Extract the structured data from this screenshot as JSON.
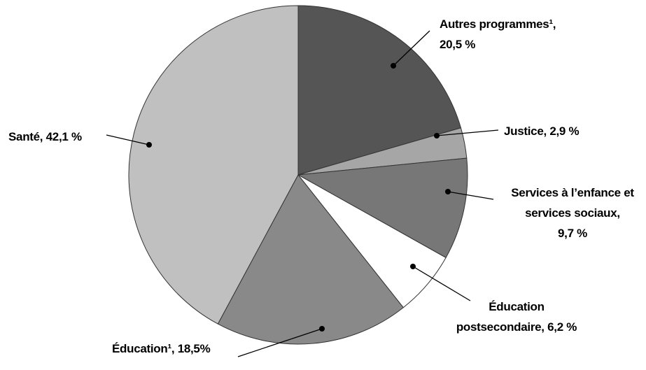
{
  "chart_data": {
    "type": "pie",
    "categories": [
      "Autres programmes¹,",
      "Justice,",
      "Services à l’enfance et services sociaux,",
      "Éducation postsecondaire,",
      "Éducation¹,",
      "Santé,"
    ],
    "values": [
      20.5,
      2.9,
      9.7,
      6.2,
      18.5,
      42.1
    ],
    "value_labels": [
      "20,5 %",
      "2,9 %",
      "9,7 %",
      "6,2 %",
      "18,5%",
      "42,1 %"
    ],
    "colors": [
      "#555555",
      "#a6a6a6",
      "#777777",
      "#ffffff",
      "#898989",
      "#c0c0c0"
    ]
  }
}
